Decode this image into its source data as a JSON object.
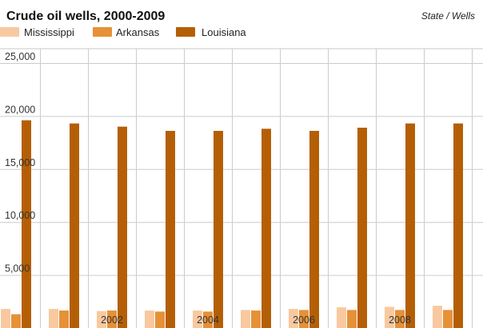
{
  "chart_data": {
    "type": "bar",
    "title": "Crude oil wells, 2000-2009",
    "subtitle": "State / Wells",
    "x": [
      2000,
      2001,
      2002,
      2003,
      2004,
      2005,
      2006,
      2007,
      2008,
      2009
    ],
    "x_tick_labels": [
      "2002",
      "2004",
      "2006",
      "2008"
    ],
    "x_tick_values": [
      2002,
      2004,
      2006,
      2008
    ],
    "y_ticks": [
      5000,
      10000,
      15000,
      20000,
      25000
    ],
    "y_tick_labels": [
      "5,000",
      "10,000",
      "15,000",
      "20,000",
      "25,000"
    ],
    "ylim": [
      0,
      25000
    ],
    "grid": true,
    "legend_position": "top-left",
    "series": [
      {
        "name": "Mississippi",
        "color": "#f8c9a0",
        "values": [
          1800,
          1800,
          1600,
          1650,
          1650,
          1700,
          1800,
          1950,
          2000,
          2100
        ]
      },
      {
        "name": "Arkansas",
        "color": "#e69138",
        "values": [
          1300,
          1650,
          1650,
          1550,
          1550,
          1650,
          1700,
          1700,
          1700,
          1700
        ]
      },
      {
        "name": "Louisiana",
        "color": "#b45f06",
        "values": [
          19600,
          19300,
          19000,
          18600,
          18600,
          18800,
          18600,
          18900,
          19300,
          19300
        ]
      }
    ]
  }
}
